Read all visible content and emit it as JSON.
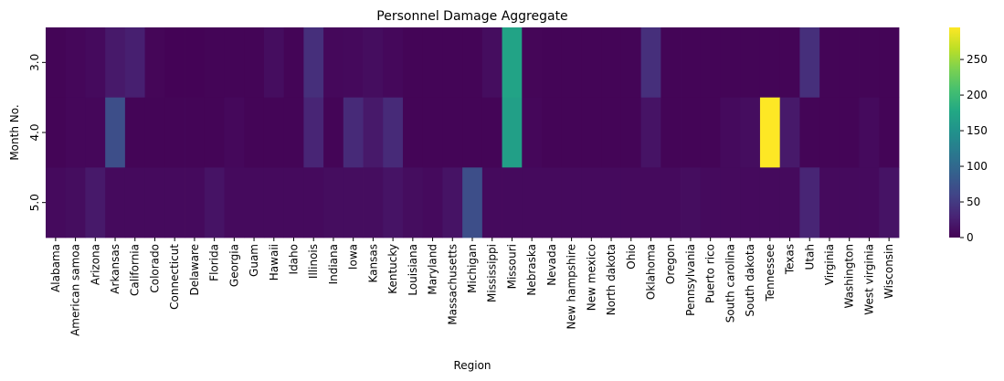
{
  "chart_data": {
    "type": "heatmap",
    "title": "Personnel Damage Aggregate",
    "xlabel": "Region",
    "ylabel": "Month No.",
    "x": [
      "Alabama",
      "American samoa",
      "Arizona",
      "Arkansas",
      "California",
      "Colorado",
      "Connecticut",
      "Delaware",
      "Florida",
      "Georgia",
      "Guam",
      "Hawaii",
      "Idaho",
      "Illinois",
      "Indiana",
      "Iowa",
      "Kansas",
      "Kentucky",
      "Louisiana",
      "Maryland",
      "Massachusetts",
      "Michigan",
      "Mississippi",
      "Missouri",
      "Nebraska",
      "Nevada",
      "New hampshire",
      "New mexico",
      "North dakota",
      "Ohio",
      "Oklahoma",
      "Oregon",
      "Pennsylvania",
      "Puerto rico",
      "South carolina",
      "South dakota",
      "Tennessee",
      "Texas",
      "Utah",
      "Virginia",
      "Washington",
      "West virginia",
      "Wisconsin"
    ],
    "y": [
      "3.0",
      "4.0",
      "5.0"
    ],
    "values": [
      [
        3,
        5,
        8,
        20,
        25,
        4,
        2,
        2,
        3,
        3,
        3,
        10,
        3,
        40,
        6,
        7,
        10,
        6,
        3,
        3,
        3,
        3,
        10,
        170,
        4,
        3,
        3,
        3,
        3,
        3,
        40,
        3,
        3,
        3,
        3,
        3,
        3,
        3,
        40,
        3,
        3,
        3,
        3
      ],
      [
        3,
        5,
        5,
        70,
        3,
        3,
        3,
        3,
        3,
        6,
        3,
        3,
        3,
        30,
        3,
        35,
        20,
        35,
        3,
        3,
        3,
        3,
        3,
        165,
        5,
        3,
        3,
        3,
        3,
        3,
        15,
        3,
        3,
        3,
        8,
        10,
        295,
        20,
        3,
        3,
        3,
        8,
        3
      ],
      [
        8,
        10,
        20,
        8,
        8,
        8,
        8,
        8,
        15,
        8,
        8,
        8,
        8,
        8,
        10,
        10,
        10,
        15,
        10,
        8,
        15,
        70,
        8,
        8,
        8,
        8,
        8,
        8,
        8,
        8,
        8,
        8,
        10,
        8,
        8,
        8,
        8,
        8,
        30,
        8,
        8,
        8,
        15
      ]
    ],
    "colorbar": {
      "min": 0,
      "max": 295,
      "ticks": [
        0,
        50,
        100,
        150,
        200,
        250
      ],
      "colormap": "viridis"
    },
    "grid": false
  }
}
